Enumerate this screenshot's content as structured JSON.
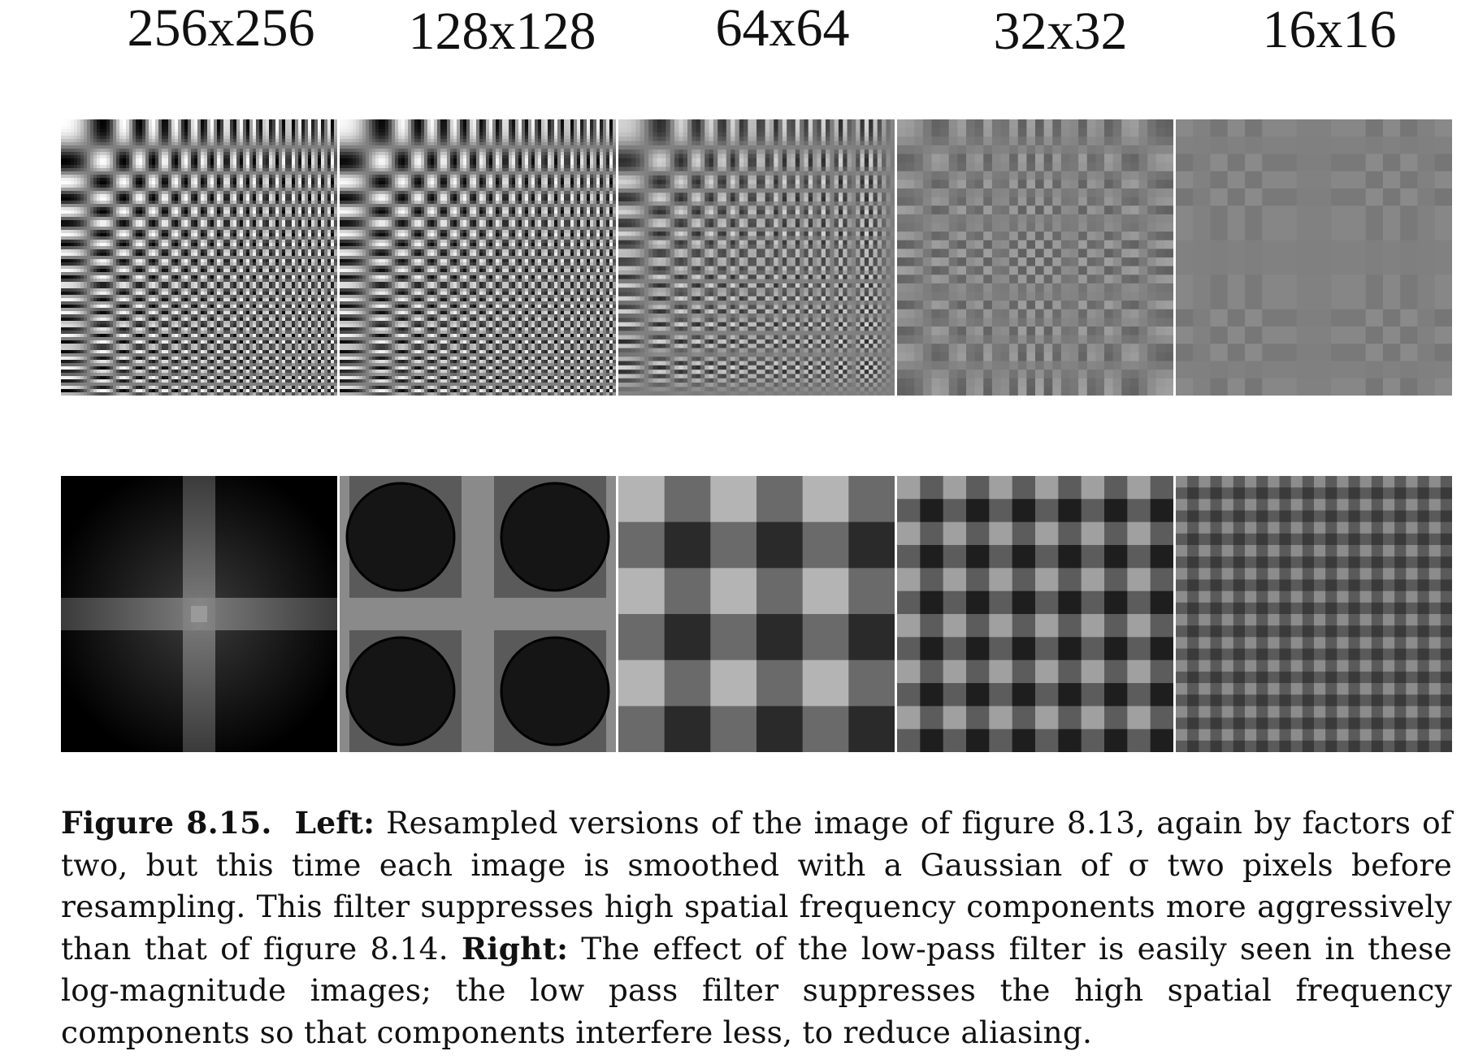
{
  "figure": {
    "resolution_labels": [
      "256x256",
      "128x128",
      "64x64",
      "32x32",
      "16x16"
    ],
    "top_row": [
      {
        "image": "smoothed-resampled-checker-256",
        "contrast": 1.0,
        "grid": 256
      },
      {
        "image": "smoothed-resampled-checker-128",
        "contrast": 0.95,
        "grid": 128
      },
      {
        "image": "smoothed-resampled-checker-64",
        "contrast": 0.65,
        "grid": 64
      },
      {
        "image": "smoothed-resampled-checker-32",
        "contrast": 0.25,
        "grid": 32
      },
      {
        "image": "smoothed-resampled-checker-16",
        "contrast": 0.08,
        "grid": 16
      }
    ],
    "bottom_row": [
      {
        "image": "log-magnitude-spectrum-256"
      },
      {
        "image": "log-magnitude-spectrum-128"
      },
      {
        "image": "log-magnitude-spectrum-64"
      },
      {
        "image": "log-magnitude-spectrum-32"
      },
      {
        "image": "log-magnitude-spectrum-16"
      }
    ]
  },
  "caption": {
    "figure_label": "Figure 8.15.",
    "left_label": "Left:",
    "left_text": "Resampled versions of the image of figure 8.13, again by factors of two, but this time each image is smoothed with a Gaussian of σ two pixels before resampling. This filter suppresses high spatial frequency components more aggressively than that of figure 8.14.",
    "right_label": "Right:",
    "right_text": "The effect of the low-pass filter is easily seen in these log-magnitude images; the low pass filter suppresses the high spatial frequency components so that components interfere less, to reduce aliasing."
  }
}
